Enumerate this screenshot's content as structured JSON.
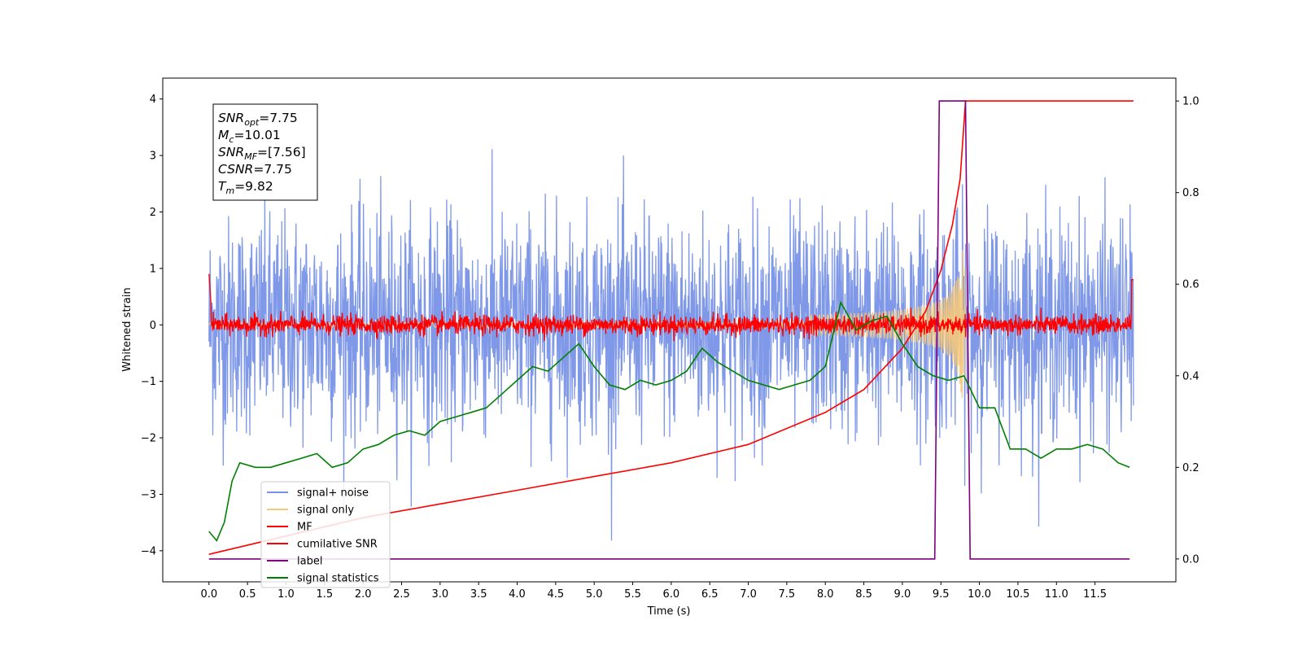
{
  "chart_data": {
    "type": "line",
    "xlabel": "Time (s)",
    "ylabel": "Whitened strain",
    "xlim": [
      -0.6,
      12.55
    ],
    "ylim": [
      -4.55,
      4.37
    ],
    "y2lim": [
      -0.05,
      1.05
    ],
    "x_ticks": [
      "0.0",
      "0.5",
      "1.0",
      "1.5",
      "2.0",
      "2.5",
      "3.0",
      "3.5",
      "4.0",
      "4.5",
      "5.0",
      "5.5",
      "6.0",
      "6.5",
      "7.0",
      "7.5",
      "8.0",
      "8.5",
      "9.0",
      "9.5",
      "10.0",
      "10.5",
      "11.0",
      "11.5"
    ],
    "y_ticks": [
      "4",
      "3",
      "2",
      "1",
      "0",
      "−1",
      "−2",
      "−3",
      "−4"
    ],
    "y2_ticks": [
      "1.0",
      "0.8",
      "0.6",
      "0.4",
      "0.2",
      "0.0"
    ],
    "annotation": [
      {
        "main": "SNR",
        "sub": "opt",
        "value": "=7.75"
      },
      {
        "main": "M",
        "sub": "c",
        "value": "=10.01"
      },
      {
        "main": "SNR",
        "sub": "MF",
        "value": "=[7.56]"
      },
      {
        "main": "CSNR",
        "sub": "",
        "value": "=7.75"
      },
      {
        "main": "T",
        "sub": "m",
        "value": "=9.82"
      }
    ],
    "legend_position": "lower-left",
    "series": [
      {
        "name": "signal+ noise",
        "color": "#7892e6",
        "axis": "left",
        "description": "noise std ~0.95, 0 to 12 s"
      },
      {
        "name": "signal only",
        "color": "#f5c97a",
        "axis": "left",
        "description": "chirp envelope growing to ~1.4 at 9.82 s"
      },
      {
        "name": "MF",
        "color": "#ff0000",
        "axis": "left",
        "description": "matched filter output, amplitude ~0.2 around 0"
      },
      {
        "name": "cumilative SNR",
        "color": "#ff0000",
        "axis": "right",
        "x": [
          0.0,
          1.0,
          2.0,
          3.0,
          4.0,
          5.0,
          6.0,
          7.0,
          8.0,
          8.5,
          9.0,
          9.3,
          9.5,
          9.65,
          9.75,
          9.82,
          12.0
        ],
        "y": [
          0.01,
          0.05,
          0.09,
          0.12,
          0.15,
          0.18,
          0.21,
          0.25,
          0.32,
          0.37,
          0.46,
          0.54,
          0.63,
          0.73,
          0.83,
          1.0,
          1.0
        ]
      },
      {
        "name": "label",
        "color": "#800080",
        "axis": "right",
        "x": [
          0.0,
          9.42,
          9.48,
          9.82,
          9.88,
          11.95
        ],
        "y": [
          0.0,
          0.0,
          1.0,
          1.0,
          0.0,
          0.0
        ]
      },
      {
        "name": "signal statistics",
        "color": "#008000",
        "axis": "right",
        "x": [
          0.0,
          0.1,
          0.2,
          0.3,
          0.4,
          0.6,
          0.8,
          1.0,
          1.2,
          1.4,
          1.6,
          1.8,
          2.0,
          2.2,
          2.4,
          2.6,
          2.8,
          3.0,
          3.2,
          3.4,
          3.6,
          3.8,
          4.0,
          4.2,
          4.4,
          4.6,
          4.8,
          5.0,
          5.2,
          5.4,
          5.6,
          5.8,
          6.0,
          6.2,
          6.4,
          6.6,
          6.8,
          7.0,
          7.2,
          7.4,
          7.6,
          7.8,
          8.0,
          8.2,
          8.4,
          8.6,
          8.8,
          9.0,
          9.2,
          9.4,
          9.6,
          9.8,
          10.0,
          10.2,
          10.4,
          10.6,
          10.8,
          11.0,
          11.2,
          11.4,
          11.6,
          11.8,
          11.95
        ],
        "y": [
          0.06,
          0.04,
          0.08,
          0.17,
          0.21,
          0.2,
          0.2,
          0.21,
          0.22,
          0.23,
          0.2,
          0.21,
          0.24,
          0.25,
          0.27,
          0.28,
          0.27,
          0.3,
          0.31,
          0.32,
          0.33,
          0.36,
          0.39,
          0.42,
          0.41,
          0.44,
          0.47,
          0.42,
          0.38,
          0.37,
          0.39,
          0.38,
          0.39,
          0.41,
          0.46,
          0.43,
          0.41,
          0.39,
          0.38,
          0.37,
          0.38,
          0.39,
          0.42,
          0.56,
          0.5,
          0.52,
          0.53,
          0.47,
          0.42,
          0.4,
          0.39,
          0.4,
          0.33,
          0.33,
          0.24,
          0.24,
          0.22,
          0.24,
          0.24,
          0.25,
          0.24,
          0.21,
          0.2
        ]
      }
    ]
  }
}
